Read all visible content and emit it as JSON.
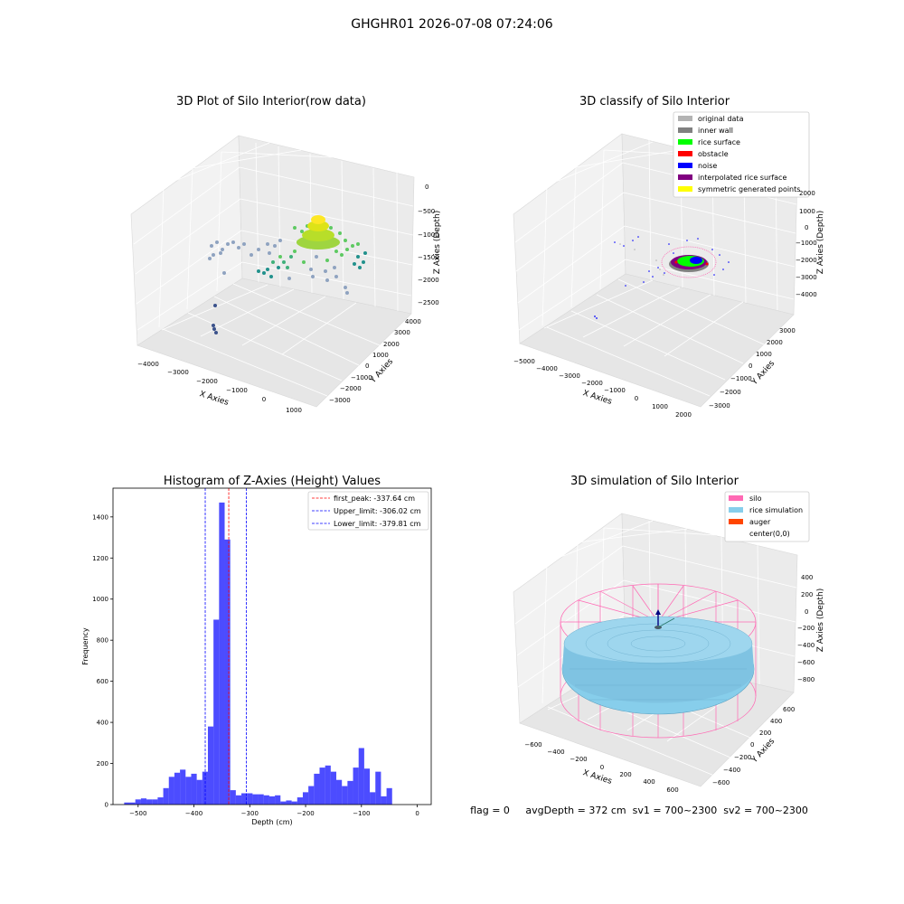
{
  "suptitle": "GHGHR01 2026-07-08 07:24:06",
  "status_line": "flag = 0     avgDepth = 372 cm  sv1 = 700~2300  sv2 = 700~2300",
  "chart_data": [
    {
      "type": "scatter3d",
      "title": "3D Plot of Silo Interior(row data)",
      "xlabel": "X Axies",
      "ylabel": "Y Axies",
      "zlabel": "Z Axies (Depth)",
      "xticks": [
        "−4000",
        "−3000",
        "−2000",
        "−1000",
        "0",
        "1000"
      ],
      "yticks": [
        "4000",
        "3000",
        "2000",
        "1000",
        "0",
        "−1000",
        "−2000",
        "−3000"
      ],
      "zticks": [
        "0",
        "−500",
        "−1000",
        "−1500",
        "−2000",
        "−2500"
      ],
      "colormap": [
        "#3b528b",
        "#8fa3c0",
        "#21918c",
        "#5ec962",
        "#fde725"
      ]
    },
    {
      "type": "scatter3d",
      "title": "3D classify of Silo Interior",
      "xlabel": "X Axies",
      "ylabel": "Y Axies",
      "zlabel": "Z Axies (Depth)",
      "xticks": [
        "−5000",
        "−4000",
        "−3000",
        "−2000",
        "−1000",
        "0",
        "1000",
        "2000"
      ],
      "yticks": [
        "3000",
        "2000",
        "1000",
        "0",
        "−1000",
        "−2000",
        "−3000"
      ],
      "zticks": [
        "2000",
        "1000",
        "0",
        "−1000",
        "−2000",
        "−3000",
        "−4000"
      ],
      "legend_placement": "top-right",
      "legend": [
        {
          "label": "original data",
          "color": "#b3b3b3"
        },
        {
          "label": "inner wall",
          "color": "#808080"
        },
        {
          "label": "rice surface",
          "color": "#00ff00"
        },
        {
          "label": "obstacle",
          "color": "#ff0000"
        },
        {
          "label": "noise",
          "color": "#0000ff"
        },
        {
          "label": "interpolated rice surface",
          "color": "#800080"
        },
        {
          "label": "symmetric generated points",
          "color": "#ffff00"
        }
      ]
    },
    {
      "type": "bar",
      "title": "Histogram of Z-Axies (Height) Values",
      "xlabel": "Depth (cm)",
      "ylabel": "Frequency",
      "xlim": [
        -545,
        25
      ],
      "ylim": [
        0,
        1540
      ],
      "xticks": [
        -500,
        -400,
        -300,
        -200,
        -100,
        0
      ],
      "xtick_labels": [
        "−500",
        "−400",
        "−300",
        "−200",
        "−100",
        "0"
      ],
      "yticks": [
        0,
        200,
        400,
        600,
        800,
        1000,
        1200,
        1400
      ],
      "bar_color": "#0000ff",
      "bin_edges": [
        -525,
        -515,
        -505,
        -495,
        -485,
        -475,
        -465,
        -455,
        -445,
        -435,
        -425,
        -415,
        -405,
        -395,
        -385,
        -375,
        -365,
        -355,
        -345,
        -335,
        -325,
        -315,
        -305,
        -295,
        -285,
        -275,
        -265,
        -255,
        -245,
        -235,
        -225,
        -215,
        -205,
        -195,
        -185,
        -175,
        -165,
        -155,
        -145,
        -135,
        -125,
        -115,
        -105,
        -95,
        -85,
        -75,
        -65,
        -55,
        -45,
        -35,
        -25,
        -15,
        -5,
        5
      ],
      "values": [
        10,
        10,
        25,
        30,
        25,
        25,
        35,
        80,
        135,
        155,
        170,
        135,
        150,
        120,
        160,
        380,
        900,
        1470,
        1290,
        70,
        45,
        55,
        55,
        50,
        50,
        45,
        40,
        45,
        15,
        20,
        15,
        35,
        60,
        90,
        150,
        180,
        190,
        160,
        120,
        90,
        115,
        180,
        275,
        175,
        60,
        160,
        40,
        80,
        0,
        0,
        0,
        0,
        0
      ],
      "legend_placement": "top-right",
      "vlines": [
        {
          "label": "first_peak: -337.64 cm",
          "x": -337.64,
          "color": "#ff0000"
        },
        {
          "label": "Upper_limit: -306.02 cm",
          "x": -306.02,
          "color": "#0000ff"
        },
        {
          "label": "Lower_limit: -379.81 cm",
          "x": -379.81,
          "color": "#0000ff"
        }
      ]
    },
    {
      "type": "surface3d",
      "title": "3D simulation of Silo Interior",
      "xlabel": "X Axies",
      "ylabel": "Y Axies",
      "zlabel": "Z Axies (Depth)",
      "xticks": [
        "−600",
        "−400",
        "−200",
        "0",
        "200",
        "400",
        "600"
      ],
      "yticks": [
        "600",
        "400",
        "200",
        "0",
        "−200",
        "−400",
        "−600"
      ],
      "zticks": [
        "400",
        "200",
        "0",
        "−200",
        "−400",
        "−600",
        "−800"
      ],
      "legend_placement": "top-right",
      "legend": [
        {
          "label": "silo",
          "color": "#ff69b4"
        },
        {
          "label": "rice simulation",
          "color": "#87ceeb"
        },
        {
          "label": "auger",
          "color": "#ff4500"
        },
        {
          "label": "center(0,0)",
          "color": ""
        }
      ]
    }
  ]
}
